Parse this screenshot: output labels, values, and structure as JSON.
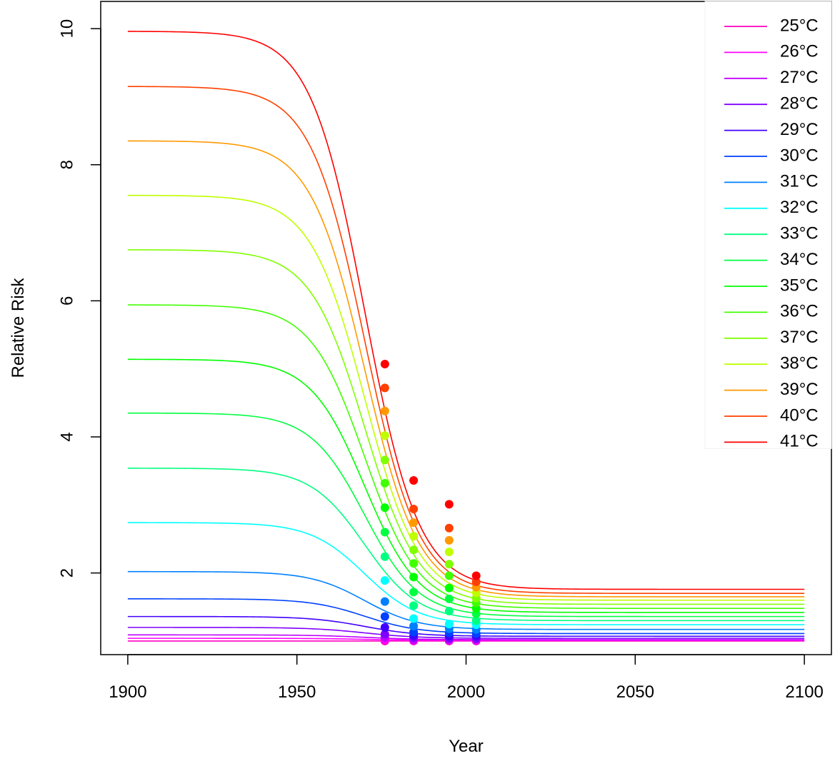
{
  "chart_data": {
    "type": "line",
    "title": "",
    "xlabel": "Year",
    "ylabel": "Relative Risk",
    "xlim": [
      1892,
      2108
    ],
    "ylim": [
      0.8,
      10.4
    ],
    "x_ticks": [
      1900,
      1950,
      2000,
      2050,
      2100
    ],
    "y_ticks": [
      2,
      4,
      6,
      8,
      10
    ],
    "grid": false,
    "legend_position": "top-right",
    "curve_model": {
      "x_start": 1900,
      "x_end": 2100,
      "midpoint_year": 1970,
      "scale_years": 8
    },
    "marker_years": [
      1976,
      1984.5,
      1995,
      2003
    ],
    "series": [
      {
        "name": "25°C",
        "color": "#ff00bf",
        "start": 1.0,
        "end": 1.0,
        "points": [
          1.0,
          1.0,
          1.0,
          1.0
        ]
      },
      {
        "name": "26°C",
        "color": "#ff00ff",
        "start": 1.04,
        "end": 1.01,
        "points": [
          1.02,
          1.01,
          1.01,
          1.01
        ]
      },
      {
        "name": "27°C",
        "color": "#bf00ff",
        "start": 1.09,
        "end": 1.02,
        "points": [
          1.05,
          1.02,
          1.02,
          1.02
        ]
      },
      {
        "name": "28°C",
        "color": "#8000ff",
        "start": 1.2,
        "end": 1.04,
        "points": [
          1.1,
          1.05,
          1.04,
          1.04
        ]
      },
      {
        "name": "29°C",
        "color": "#4000ff",
        "start": 1.36,
        "end": 1.07,
        "points": [
          1.2,
          1.08,
          1.07,
          1.07
        ]
      },
      {
        "name": "30°C",
        "color": "#0040ff",
        "start": 1.62,
        "end": 1.11,
        "points": [
          1.36,
          1.13,
          1.12,
          1.11
        ]
      },
      {
        "name": "31°C",
        "color": "#0080ff",
        "start": 2.02,
        "end": 1.17,
        "points": [
          1.58,
          1.22,
          1.18,
          1.17
        ]
      },
      {
        "name": "32°C",
        "color": "#00ffff",
        "start": 2.74,
        "end": 1.24,
        "points": [
          1.89,
          1.33,
          1.25,
          1.24
        ]
      },
      {
        "name": "33°C",
        "color": "#00ff80",
        "start": 3.54,
        "end": 1.3,
        "points": [
          2.24,
          1.52,
          1.44,
          1.3
        ]
      },
      {
        "name": "34°C",
        "color": "#00ff40",
        "start": 4.35,
        "end": 1.36,
        "points": [
          2.6,
          1.72,
          1.62,
          1.4
        ]
      },
      {
        "name": "35°C",
        "color": "#00ff00",
        "start": 5.14,
        "end": 1.42,
        "points": [
          2.96,
          1.94,
          1.78,
          1.48
        ]
      },
      {
        "name": "36°C",
        "color": "#40ff00",
        "start": 5.94,
        "end": 1.48,
        "points": [
          3.32,
          2.14,
          1.96,
          1.56
        ]
      },
      {
        "name": "37°C",
        "color": "#80ff00",
        "start": 6.75,
        "end": 1.54,
        "points": [
          3.66,
          2.34,
          2.13,
          1.63
        ]
      },
      {
        "name": "38°C",
        "color": "#bfff00",
        "start": 7.55,
        "end": 1.6,
        "points": [
          4.02,
          2.54,
          2.31,
          1.71
        ]
      },
      {
        "name": "39°C",
        "color": "#ff9900",
        "start": 8.35,
        "end": 1.65,
        "points": [
          4.38,
          2.74,
          2.48,
          1.79
        ]
      },
      {
        "name": "40°C",
        "color": "#ff4000",
        "start": 9.15,
        "end": 1.7,
        "points": [
          4.72,
          2.94,
          2.66,
          1.87
        ]
      },
      {
        "name": "41°C",
        "color": "#ff0000",
        "start": 9.96,
        "end": 1.76,
        "points": [
          5.07,
          3.36,
          3.01,
          1.96
        ]
      }
    ]
  }
}
